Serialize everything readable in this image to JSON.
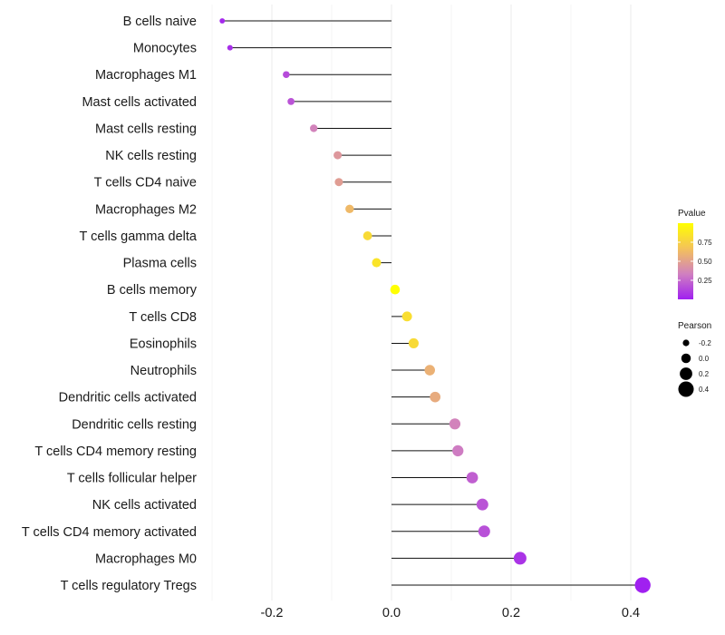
{
  "chart_data": {
    "type": "lollipop",
    "title": "",
    "xlabel": "",
    "ylabel": "",
    "xlim": [
      -0.3,
      0.44
    ],
    "x_ticks": [
      -0.2,
      0.0,
      0.2,
      0.4
    ],
    "x_tick_labels": [
      "-0.2",
      "0.0",
      "0.2",
      "0.4"
    ],
    "grid": true,
    "baseline": 0.0,
    "categories": [
      "B cells naive",
      "Monocytes",
      "Macrophages M1",
      "Mast cells activated",
      "Mast cells resting",
      "NK cells resting",
      "T cells CD4 naive",
      "Macrophages M2",
      "T cells gamma delta",
      "Plasma cells",
      "B cells memory",
      "T cells CD8",
      "Eosinophils",
      "Neutrophils",
      "Dendritic cells activated",
      "Dendritic cells resting",
      "T cells CD4 memory resting",
      "T cells follicular helper",
      "NK cells activated",
      "T cells CD4 memory activated",
      "Macrophages M0",
      "T cells regulatory  Tregs"
    ],
    "pearson": [
      -0.283,
      -0.27,
      -0.176,
      -0.168,
      -0.13,
      -0.09,
      -0.088,
      -0.07,
      -0.04,
      -0.025,
      0.006,
      0.026,
      0.037,
      0.064,
      0.073,
      0.106,
      0.111,
      0.135,
      0.152,
      0.155,
      0.215,
      0.42
    ],
    "pvalue": [
      0.03,
      0.05,
      0.15,
      0.18,
      0.35,
      0.45,
      0.48,
      0.62,
      0.8,
      0.85,
      1.0,
      0.82,
      0.8,
      0.58,
      0.55,
      0.35,
      0.32,
      0.22,
      0.18,
      0.17,
      0.07,
      0.0
    ],
    "legend": {
      "pvalue": {
        "title": "Pvalue",
        "ticks": [
          0.25,
          0.5,
          0.75
        ],
        "tick_labels": [
          "0.25",
          "0.50",
          "0.75"
        ],
        "range": [
          0.0,
          1.0
        ],
        "colors": [
          "#a020f0",
          "#d080c0",
          "#f4c25a",
          "#ffff00"
        ]
      },
      "pearson": {
        "title": "Pearson",
        "values": [
          -0.2,
          0.0,
          0.2,
          0.4
        ],
        "labels": [
          "-0.2",
          "0.0",
          "0.2",
          "0.4"
        ]
      },
      "placement": "right"
    }
  }
}
